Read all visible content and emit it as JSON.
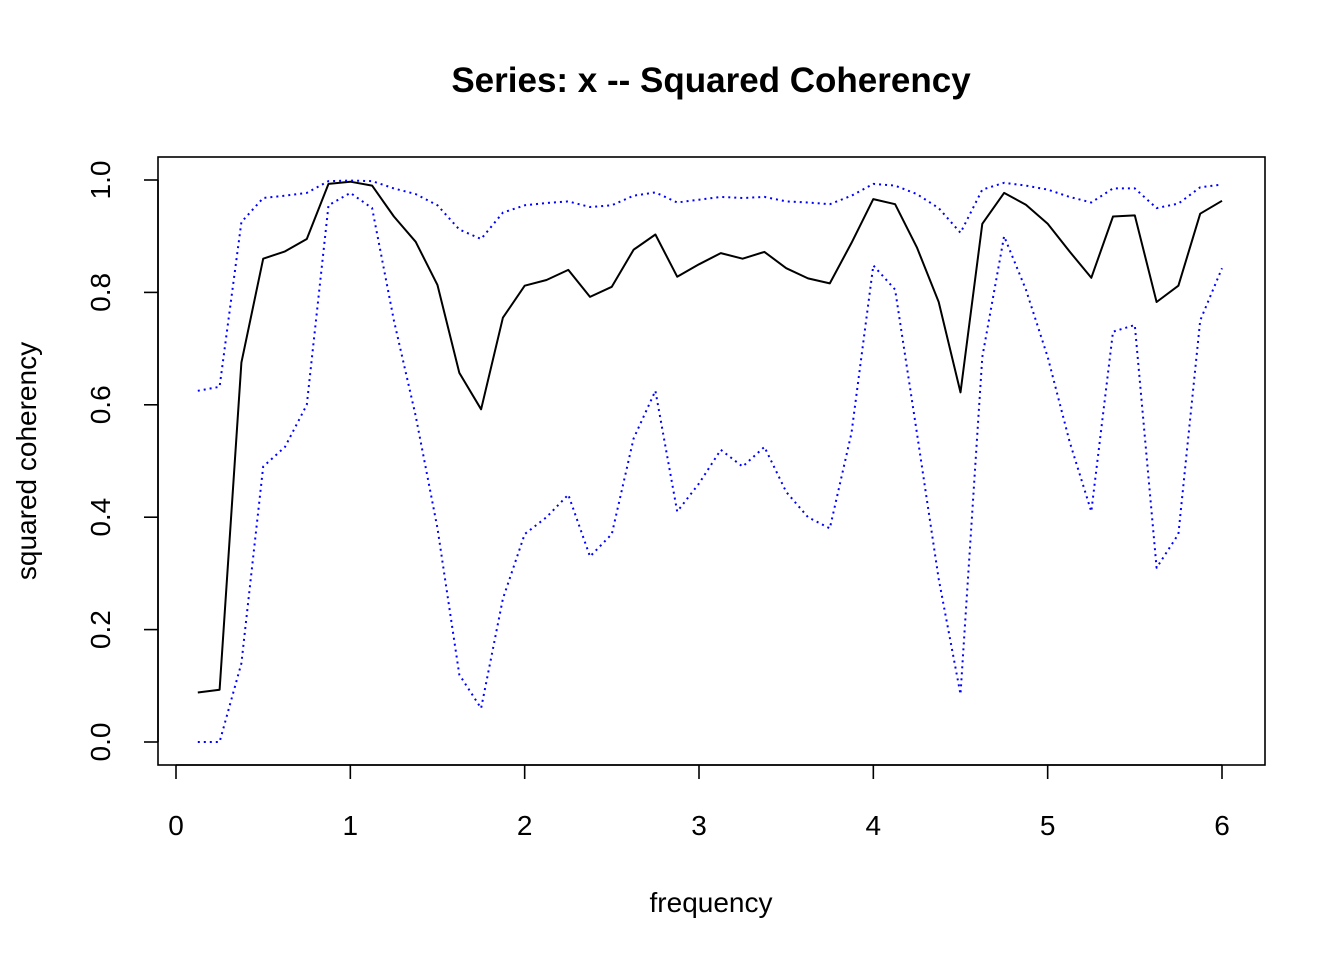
{
  "chart_data": {
    "type": "line",
    "title": "Series: x --  Squared Coherency",
    "xlabel": "frequency",
    "ylabel": "squared coherency",
    "xlim": [
      0,
      6
    ],
    "ylim": [
      0,
      1
    ],
    "xticks": [
      0,
      1,
      2,
      3,
      4,
      5,
      6
    ],
    "xtick_labels": [
      "0",
      "1",
      "2",
      "3",
      "4",
      "5",
      "6"
    ],
    "yticks": [
      0,
      0.2,
      0.4,
      0.6,
      0.8,
      1
    ],
    "ytick_labels": [
      "0.0",
      "0.2",
      "0.4",
      "0.6",
      "0.8",
      "1.0"
    ],
    "grid": false,
    "legend": "none",
    "x": [
      0.125,
      0.25,
      0.375,
      0.5,
      0.625,
      0.75,
      0.875,
      1.0,
      1.125,
      1.25,
      1.375,
      1.5,
      1.625,
      1.75,
      1.875,
      2.0,
      2.125,
      2.25,
      2.375,
      2.5,
      2.625,
      2.75,
      2.875,
      3.0,
      3.125,
      3.25,
      3.375,
      3.5,
      3.625,
      3.75,
      3.875,
      4.0,
      4.125,
      4.25,
      4.375,
      4.5,
      4.625,
      4.75,
      4.875,
      5.0,
      5.125,
      5.25,
      5.375,
      5.5,
      5.625,
      5.75,
      5.875,
      6.0
    ],
    "series": [
      {
        "color": "#000000",
        "linestyle": "solid",
        "values": [
          0.088,
          0.093,
          0.675,
          0.86,
          0.873,
          0.895,
          0.993,
          0.997,
          0.99,
          0.935,
          0.89,
          0.813,
          0.657,
          0.592,
          0.755,
          0.812,
          0.822,
          0.84,
          0.792,
          0.81,
          0.876,
          0.903,
          0.828,
          0.85,
          0.87,
          0.86,
          0.872,
          0.843,
          0.825,
          0.816,
          0.888,
          0.966,
          0.957,
          0.88,
          0.783,
          0.622,
          0.922,
          0.977,
          0.956,
          0.922,
          0.873,
          0.826,
          0.935,
          0.937,
          0.783,
          0.812,
          0.94,
          0.963
        ]
      },
      {
        "color": "#0000ff",
        "linestyle": "dotted",
        "values": [
          0.625,
          0.632,
          0.925,
          0.968,
          0.972,
          0.977,
          0.998,
          0.999,
          0.998,
          0.985,
          0.975,
          0.955,
          0.912,
          0.895,
          0.942,
          0.955,
          0.959,
          0.962,
          0.952,
          0.955,
          0.972,
          0.978,
          0.96,
          0.965,
          0.97,
          0.968,
          0.97,
          0.962,
          0.96,
          0.957,
          0.972,
          0.993,
          0.99,
          0.975,
          0.95,
          0.906,
          0.983,
          0.995,
          0.99,
          0.983,
          0.97,
          0.96,
          0.985,
          0.985,
          0.95,
          0.958,
          0.987,
          0.992
        ]
      },
      {
        "color": "#0000ff",
        "linestyle": "dotted",
        "values": [
          0.0,
          0.0,
          0.14,
          0.49,
          0.525,
          0.6,
          0.955,
          0.977,
          0.95,
          0.75,
          0.58,
          0.38,
          0.12,
          0.06,
          0.255,
          0.37,
          0.4,
          0.44,
          0.33,
          0.37,
          0.54,
          0.625,
          0.41,
          0.46,
          0.52,
          0.49,
          0.525,
          0.445,
          0.4,
          0.38,
          0.55,
          0.848,
          0.805,
          0.55,
          0.29,
          0.085,
          0.685,
          0.9,
          0.805,
          0.685,
          0.535,
          0.41,
          0.73,
          0.742,
          0.31,
          0.37,
          0.75,
          0.843
        ]
      }
    ]
  }
}
